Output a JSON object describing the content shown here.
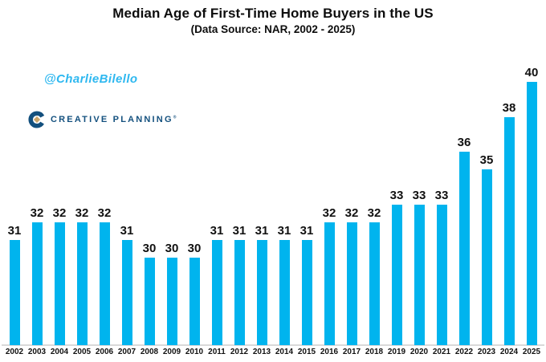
{
  "header": {
    "title": "Median Age of First-Time Home Buyers in the US",
    "subtitle": "(Data Source: NAR, 2002 - 2025)"
  },
  "watermark": "@CharlieBilello",
  "logo": {
    "text": "CREATIVE PLANNING",
    "trademark": "®"
  },
  "colors": {
    "bar": "#00b4ee",
    "watermark": "#2eb8f0",
    "logo_navy": "#13507e",
    "logo_gold": "#c9a469",
    "axis_line": "#d9d9d9",
    "text": "#0d0d0d"
  },
  "chart_data": {
    "type": "bar",
    "title": "Median Age of First-Time Home Buyers in the US",
    "subtitle": "(Data Source: NAR, 2002 - 2025)",
    "categories": [
      "2002",
      "2003",
      "2004",
      "2005",
      "2006",
      "2007",
      "2008",
      "2009",
      "2010",
      "2011",
      "2012",
      "2013",
      "2014",
      "2015",
      "2016",
      "2017",
      "2018",
      "2019",
      "2020",
      "2021",
      "2022",
      "2023",
      "2024",
      "2025"
    ],
    "values": [
      31,
      32,
      32,
      32,
      32,
      31,
      30,
      30,
      30,
      31,
      31,
      31,
      31,
      31,
      32,
      32,
      32,
      33,
      33,
      33,
      36,
      35,
      38,
      40
    ],
    "xlabel": "",
    "ylabel": "",
    "ylim": [
      25,
      41
    ],
    "grid": false,
    "legend": false,
    "data_labels": true,
    "bar_color": "#00b4ee"
  }
}
